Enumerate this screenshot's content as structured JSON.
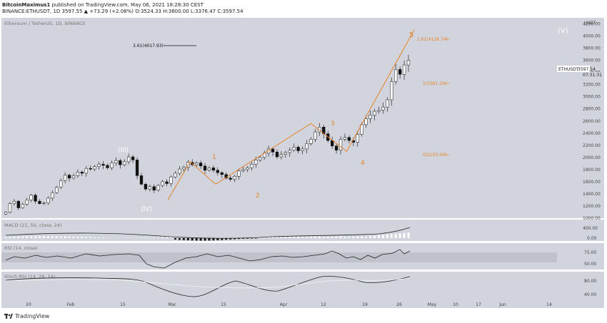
{
  "header": {
    "line1_user": "BitcoinMaximus1",
    "line1_rest": " published on TradingView.com, May 06, 2021 18:28:30 CEST",
    "line2": "BINANCE:ETHUSDT, 1D  3597.55  ▲  +73.29 (+2.08%)  O:3524.33  H:3600.00  L:3376.47  C:3597.54"
  },
  "main_pane": {
    "title": "Ethereum / TetherUS, 1D, BINANCE",
    "price_label": "ETHUSDT",
    "price_value": "3597.54",
    "countdown": "07:31:31",
    "currency": "USDT"
  },
  "annotations": {
    "wave_III": "(III)",
    "wave_IV": "(IV)",
    "wave_V": "(V)",
    "wave_1": "1",
    "wave_2": "2",
    "wave_3": "3",
    "wave_4": "4",
    "wave_5": "5",
    "fib_1_61": "1.61(4128.74)",
    "fib_1": "1(3361.24)",
    "fib_0": "0(2103.04)",
    "fib_3_61": "3.61(4017.93)"
  },
  "indicators": {
    "macd_title": "MACD (21, 50, close, 24)",
    "rsi_title": "RSI (14, close)",
    "stoch_title": "Stoch RSI (14, 28, 14)"
  },
  "colors": {
    "pane_bg": "#d1d4dc",
    "wave_orange": "#e8832a",
    "candle": "#111111"
  },
  "brand": "TradingView",
  "chart_data": [
    {
      "type": "candlestick",
      "title": "Ethereum / TetherUS, 1D, BINANCE",
      "y_axis": "USDT",
      "ylim": [
        1000,
        4300
      ],
      "y_ticks": [
        1000,
        1200,
        1400,
        1600,
        1800,
        2000,
        2200,
        2400,
        2600,
        2800,
        3000,
        3200,
        3400,
        3600,
        3800,
        4000,
        4200
      ],
      "x_ticks": [
        "20",
        "Feb",
        "15",
        "Mar",
        "15",
        "Apr",
        "12",
        "19",
        "26",
        "May",
        "10",
        "17",
        "Jun",
        "14"
      ],
      "last_price": 3597.54,
      "close_series": [
        1100,
        1240,
        1280,
        1170,
        1230,
        1300,
        1380,
        1280,
        1240,
        1250,
        1330,
        1420,
        1510,
        1620,
        1710,
        1660,
        1700,
        1760,
        1740,
        1820,
        1810,
        1850,
        1890,
        1870,
        1830,
        1910,
        1950,
        1880,
        1930,
        2010,
        1960,
        1700,
        1560,
        1480,
        1520,
        1460,
        1540,
        1600,
        1570,
        1680,
        1740,
        1810,
        1840,
        1920,
        1880,
        1910,
        1860,
        1790,
        1830,
        1790,
        1750,
        1720,
        1660,
        1640,
        1690,
        1780,
        1800,
        1830,
        1890,
        1960,
        2000,
        2070,
        2140,
        2090,
        2010,
        2050,
        2080,
        2120,
        2170,
        2110,
        2140,
        2230,
        2300,
        2420,
        2500,
        2390,
        2280,
        2190,
        2120,
        2300,
        2330,
        2280,
        2250,
        2380,
        2540,
        2640,
        2700,
        2760,
        2780,
        2830,
        2950,
        3250,
        3450,
        3370,
        3524,
        3597
      ],
      "wave_path": [
        [
          1.0,
          1300
        ],
        [
          1.28,
          1930
        ],
        [
          1.6,
          1560
        ],
        [
          2.8,
          2560
        ],
        [
          3.25,
          2100
        ],
        [
          4.1,
          4100
        ]
      ],
      "fib_levels": [
        {
          "label": "1.61(4128.74)",
          "value": 4128.74
        },
        {
          "label": "1(3361.24)",
          "value": 3361.24
        },
        {
          "label": "0(2103.04)",
          "value": 2103.04
        },
        {
          "label": "3.61(4017.93)",
          "value": 4017.93
        }
      ]
    },
    {
      "type": "histogram",
      "title": "MACD (21, 50, close, 24)",
      "y_ticks": [
        0,
        400
      ]
    },
    {
      "type": "line",
      "title": "RSI (14, close)",
      "y_ticks": [
        50,
        75
      ]
    },
    {
      "type": "line",
      "title": "Stoch RSI (14, 28, 14)",
      "y_ticks": [
        40,
        80
      ]
    }
  ]
}
